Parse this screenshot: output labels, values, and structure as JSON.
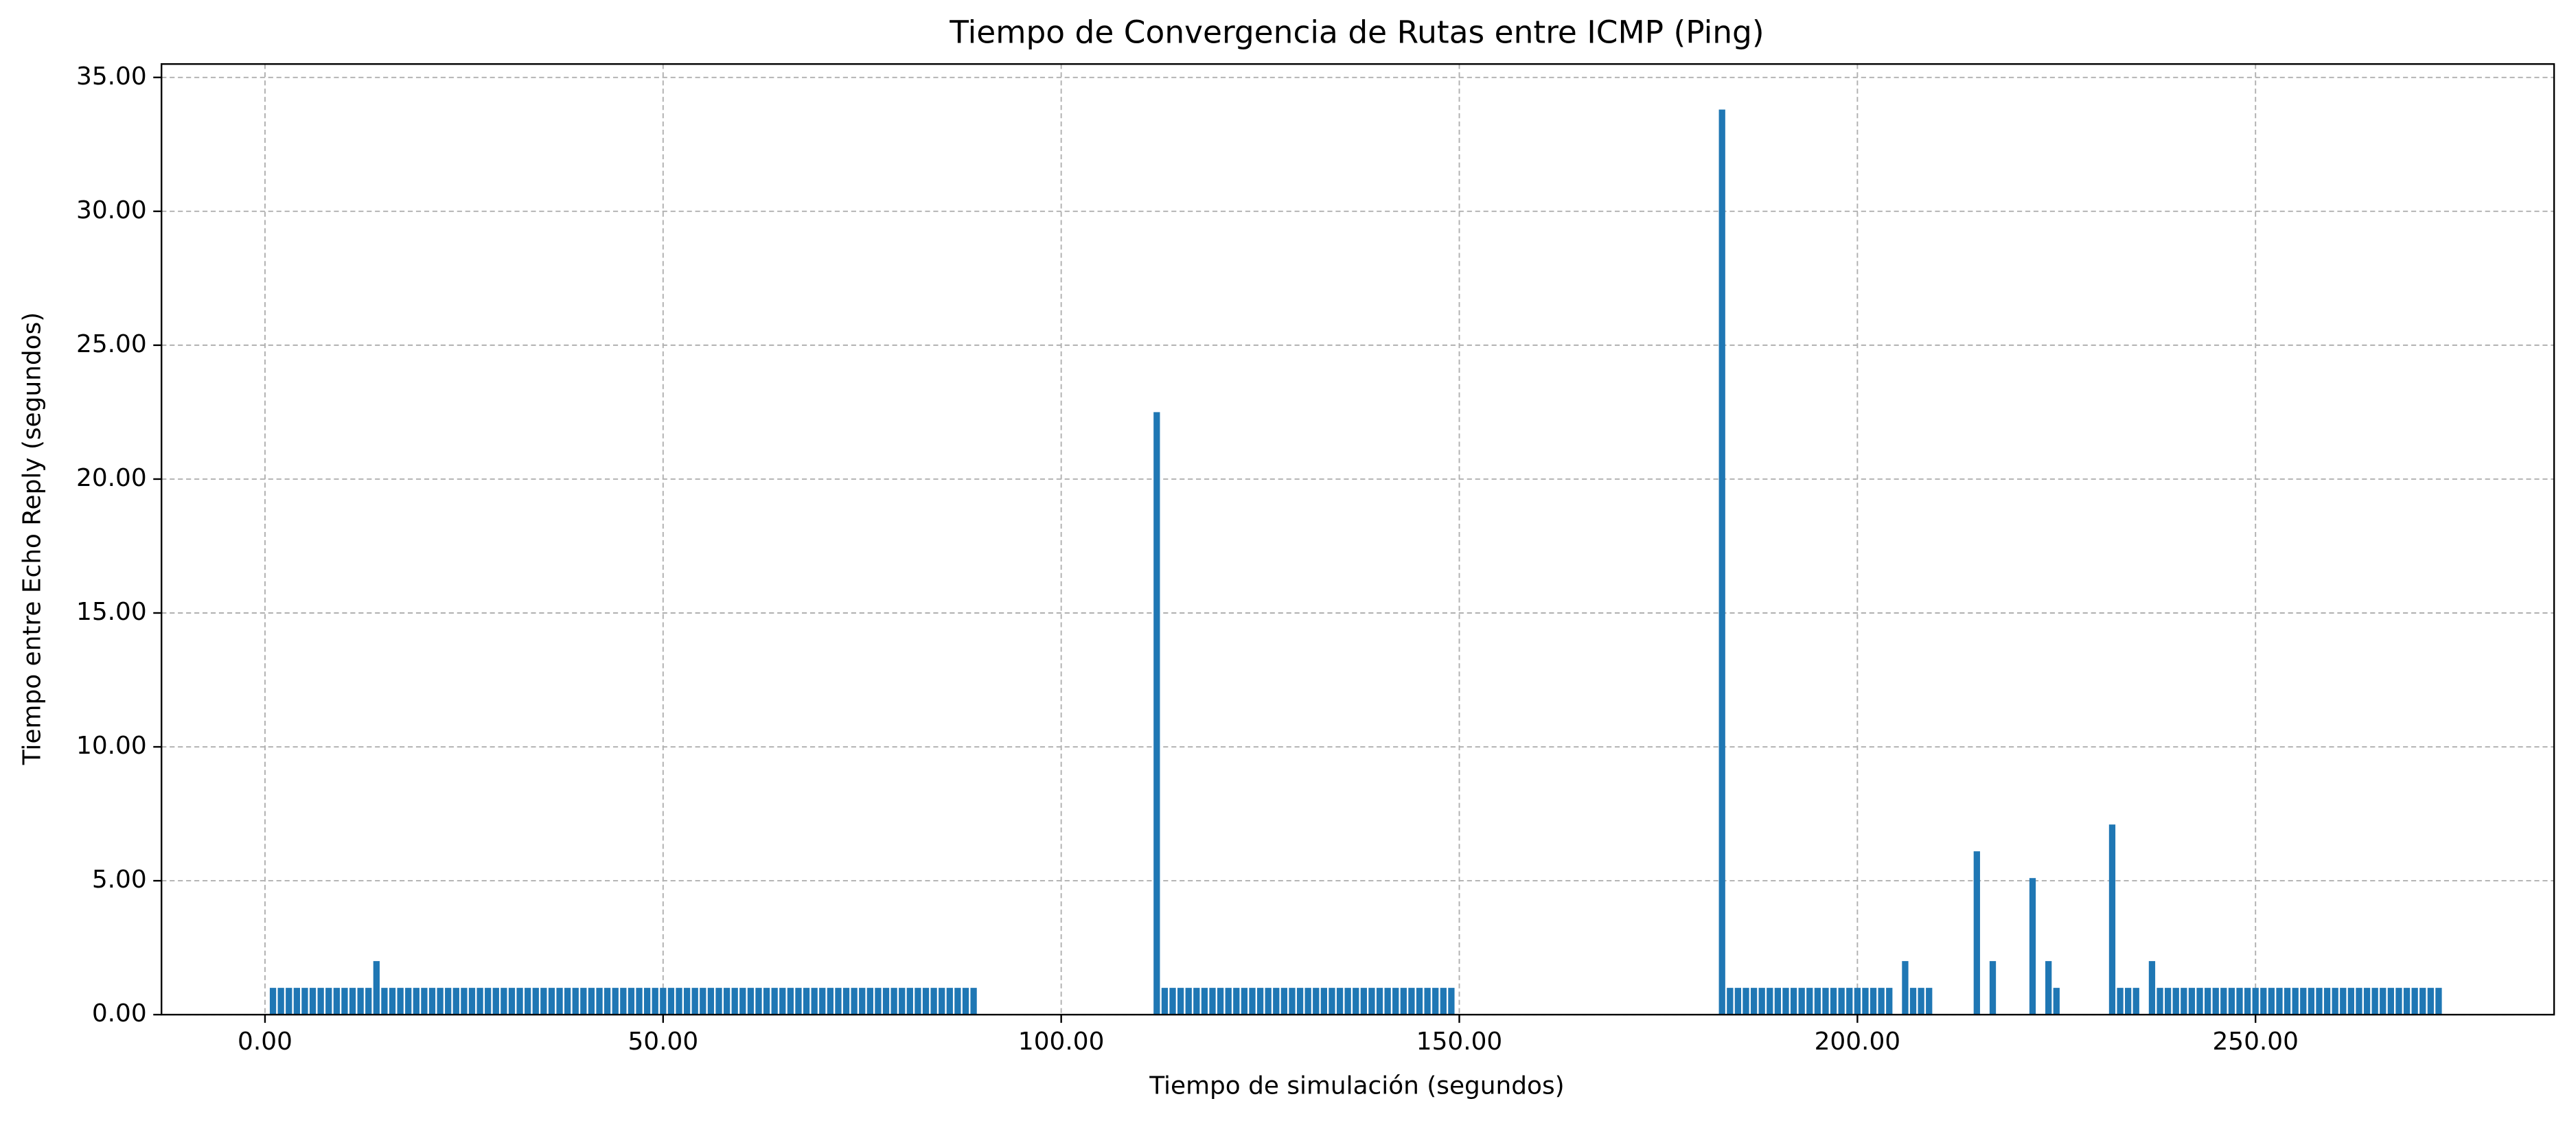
{
  "chart_data": {
    "type": "bar",
    "title": "Tiempo de Convergencia de Rutas entre ICMP (Ping)",
    "x_label": "Tiempo de simulación (segundos)",
    "y_label": "Tiempo entre Echo Reply (segundos)",
    "color": "#1f77b4",
    "grid": true,
    "bar_width": 0.8,
    "xlim": [
      -13,
      287.5
    ],
    "ylim": [
      0,
      35.5
    ],
    "xticks": [
      {
        "value": 0,
        "label": "0.00"
      },
      {
        "value": 50,
        "label": "50.00"
      },
      {
        "value": 100,
        "label": "100.00"
      },
      {
        "value": 150,
        "label": "150.00"
      },
      {
        "value": 200,
        "label": "200.00"
      },
      {
        "value": 250,
        "label": "250.00"
      }
    ],
    "yticks": [
      {
        "value": 0,
        "label": "0.00"
      },
      {
        "value": 5,
        "label": "5.00"
      },
      {
        "value": 10,
        "label": "10.00"
      },
      {
        "value": 15,
        "label": "15.00"
      },
      {
        "value": 20,
        "label": "20.00"
      },
      {
        "value": 25,
        "label": "25.00"
      },
      {
        "value": 30,
        "label": "30.00"
      },
      {
        "value": 35,
        "label": "35.00"
      }
    ],
    "x": [
      1,
      2,
      3,
      4,
      5,
      6,
      7,
      8,
      9,
      10,
      11,
      12,
      13,
      14,
      15,
      16,
      17,
      18,
      19,
      20,
      21,
      22,
      23,
      24,
      25,
      26,
      27,
      28,
      29,
      30,
      31,
      32,
      33,
      34,
      35,
      36,
      37,
      38,
      39,
      40,
      41,
      42,
      43,
      44,
      45,
      46,
      47,
      48,
      49,
      50,
      51,
      52,
      53,
      54,
      55,
      56,
      57,
      58,
      59,
      60,
      61,
      62,
      63,
      64,
      65,
      66,
      67,
      68,
      69,
      70,
      71,
      72,
      73,
      74,
      75,
      76,
      77,
      78,
      79,
      80,
      81,
      82,
      83,
      84,
      85,
      86,
      87,
      88,
      89,
      112,
      113,
      114,
      115,
      116,
      117,
      118,
      119,
      120,
      121,
      122,
      123,
      124,
      125,
      126,
      127,
      128,
      129,
      130,
      131,
      132,
      133,
      134,
      135,
      136,
      137,
      138,
      139,
      140,
      141,
      142,
      143,
      144,
      145,
      146,
      147,
      148,
      149,
      183,
      184,
      185,
      186,
      187,
      188,
      189,
      190,
      191,
      192,
      193,
      194,
      195,
      196,
      197,
      198,
      199,
      200,
      201,
      202,
      203,
      204,
      206,
      207,
      208,
      209,
      215,
      217,
      222,
      224,
      225,
      232,
      233,
      234,
      235,
      237,
      238,
      239,
      240,
      241,
      242,
      243,
      244,
      245,
      246,
      247,
      248,
      249,
      250,
      251,
      252,
      253,
      254,
      255,
      256,
      257,
      258,
      259,
      260,
      261,
      262,
      263,
      264,
      265,
      266,
      267,
      268,
      269,
      270,
      271,
      272,
      273
    ],
    "values": [
      1,
      1,
      1,
      1,
      1,
      1,
      1,
      1,
      1,
      1,
      1,
      1,
      1,
      2,
      1,
      1,
      1,
      1,
      1,
      1,
      1,
      1,
      1,
      1,
      1,
      1,
      1,
      1,
      1,
      1,
      1,
      1,
      1,
      1,
      1,
      1,
      1,
      1,
      1,
      1,
      1,
      1,
      1,
      1,
      1,
      1,
      1,
      1,
      1,
      1,
      1,
      1,
      1,
      1,
      1,
      1,
      1,
      1,
      1,
      1,
      1,
      1,
      1,
      1,
      1,
      1,
      1,
      1,
      1,
      1,
      1,
      1,
      1,
      1,
      1,
      1,
      1,
      1,
      1,
      1,
      1,
      1,
      1,
      1,
      1,
      1,
      1,
      1,
      1,
      22.5,
      1,
      1,
      1,
      1,
      1,
      1,
      1,
      1,
      1,
      1,
      1,
      1,
      1,
      1,
      1,
      1,
      1,
      1,
      1,
      1,
      1,
      1,
      1,
      1,
      1,
      1,
      1,
      1,
      1,
      1,
      1,
      1,
      1,
      1,
      1,
      1,
      1,
      33.8,
      1,
      1,
      1,
      1,
      1,
      1,
      1,
      1,
      1,
      1,
      1,
      1,
      1,
      1,
      1,
      1,
      1,
      1,
      1,
      1,
      1,
      2,
      1,
      1,
      1,
      6.1,
      2,
      5.1,
      2,
      1,
      7.1,
      1,
      1,
      1,
      2,
      1,
      1,
      1,
      1,
      1,
      1,
      1,
      1,
      1,
      1,
      1,
      1,
      1,
      1,
      1,
      1,
      1,
      1,
      1,
      1,
      1,
      1,
      1,
      1,
      1,
      1,
      1,
      1,
      1,
      1,
      1,
      1,
      1,
      1,
      1,
      1
    ]
  }
}
